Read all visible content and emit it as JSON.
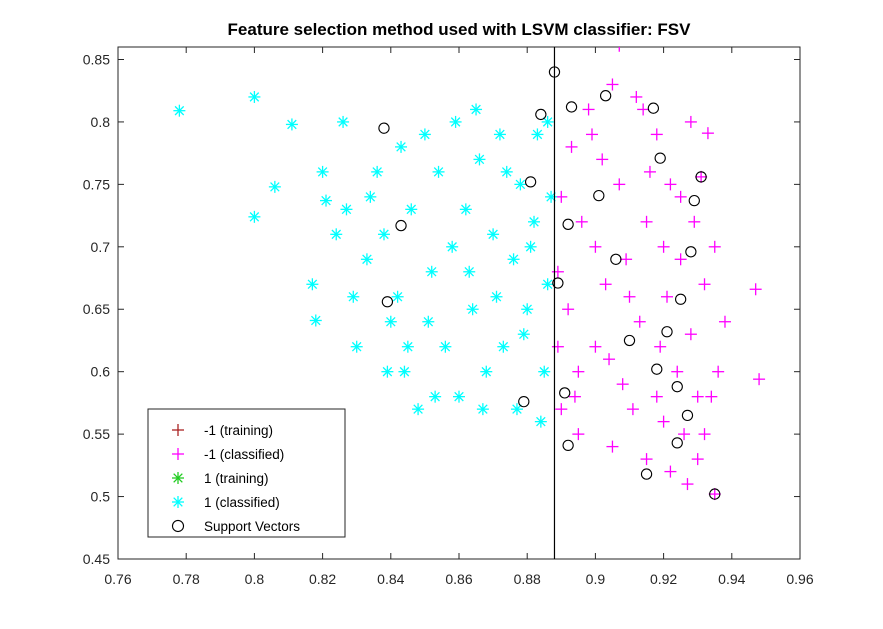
{
  "chart_data": {
    "type": "scatter",
    "title": "Feature selection method used with LSVM classifier: FSV",
    "xlabel": "",
    "ylabel": "",
    "xlim": [
      0.76,
      0.96
    ],
    "ylim": [
      0.45,
      0.86
    ],
    "xticks": [
      "0.76",
      "0.78",
      "0.8",
      "0.82",
      "0.84",
      "0.86",
      "0.88",
      "0.9",
      "0.92",
      "0.94",
      "0.96"
    ],
    "yticks": [
      "0.45",
      "0.5",
      "0.55",
      "0.6",
      "0.65",
      "0.7",
      "0.75",
      "0.8",
      "0.85"
    ],
    "grid": false,
    "legend_position": "bottom-left",
    "decision_boundary_x": 0.888,
    "series": [
      {
        "name": "-1 (training)",
        "marker": "plus",
        "color": "#aa2222",
        "points": []
      },
      {
        "name": "-1 (classified)",
        "marker": "plus",
        "color": "#ff00ff",
        "points": [
          [
            0.907,
            0.861
          ],
          [
            0.947,
            0.666
          ],
          [
            0.948,
            0.594
          ],
          [
            0.933,
            0.791
          ],
          [
            0.931,
            0.756
          ],
          [
            0.935,
            0.502
          ],
          [
            0.93,
            0.58
          ],
          [
            0.928,
            0.63
          ],
          [
            0.925,
            0.69
          ],
          [
            0.922,
            0.75
          ],
          [
            0.918,
            0.79
          ],
          [
            0.912,
            0.82
          ],
          [
            0.905,
            0.83
          ],
          [
            0.898,
            0.81
          ],
          [
            0.893,
            0.78
          ],
          [
            0.89,
            0.74
          ],
          [
            0.889,
            0.68
          ],
          [
            0.889,
            0.62
          ],
          [
            0.89,
            0.57
          ],
          [
            0.895,
            0.55
          ],
          [
            0.905,
            0.54
          ],
          [
            0.915,
            0.53
          ],
          [
            0.922,
            0.52
          ],
          [
            0.927,
            0.51
          ],
          [
            0.932,
            0.55
          ],
          [
            0.936,
            0.6
          ],
          [
            0.938,
            0.64
          ],
          [
            0.935,
            0.7
          ],
          [
            0.929,
            0.72
          ],
          [
            0.92,
            0.7
          ],
          [
            0.91,
            0.66
          ],
          [
            0.9,
            0.62
          ],
          [
            0.895,
            0.6
          ],
          [
            0.9,
            0.7
          ],
          [
            0.907,
            0.75
          ],
          [
            0.915,
            0.72
          ],
          [
            0.924,
            0.6
          ],
          [
            0.918,
            0.58
          ],
          [
            0.908,
            0.59
          ],
          [
            0.903,
            0.67
          ],
          [
            0.913,
            0.64
          ],
          [
            0.921,
            0.66
          ],
          [
            0.926,
            0.55
          ],
          [
            0.92,
            0.56
          ],
          [
            0.911,
            0.57
          ],
          [
            0.932,
            0.67
          ],
          [
            0.928,
            0.8
          ],
          [
            0.902,
            0.77
          ],
          [
            0.896,
            0.72
          ],
          [
            0.892,
            0.65
          ],
          [
            0.894,
            0.58
          ],
          [
            0.916,
            0.76
          ],
          [
            0.919,
            0.62
          ],
          [
            0.925,
            0.74
          ],
          [
            0.93,
            0.53
          ],
          [
            0.934,
            0.58
          ],
          [
            0.909,
            0.69
          ],
          [
            0.899,
            0.79
          ],
          [
            0.904,
            0.61
          ],
          [
            0.914,
            0.81
          ]
        ]
      },
      {
        "name": "1 (training)",
        "marker": "asterisk",
        "color": "#22cc22",
        "points": []
      },
      {
        "name": "1 (classified)",
        "marker": "asterisk",
        "color": "#00ffff",
        "points": [
          [
            0.778,
            0.809
          ],
          [
            0.8,
            0.82
          ],
          [
            0.8,
            0.724
          ],
          [
            0.806,
            0.748
          ],
          [
            0.811,
            0.798
          ],
          [
            0.818,
            0.641
          ],
          [
            0.817,
            0.67
          ],
          [
            0.821,
            0.737
          ],
          [
            0.826,
            0.8
          ],
          [
            0.83,
            0.62
          ],
          [
            0.833,
            0.69
          ],
          [
            0.836,
            0.76
          ],
          [
            0.84,
            0.64
          ],
          [
            0.844,
            0.6
          ],
          [
            0.848,
            0.57
          ],
          [
            0.85,
            0.79
          ],
          [
            0.852,
            0.68
          ],
          [
            0.856,
            0.62
          ],
          [
            0.86,
            0.58
          ],
          [
            0.862,
            0.73
          ],
          [
            0.865,
            0.81
          ],
          [
            0.868,
            0.6
          ],
          [
            0.871,
            0.66
          ],
          [
            0.874,
            0.76
          ],
          [
            0.877,
            0.57
          ],
          [
            0.879,
            0.63
          ],
          [
            0.881,
            0.7
          ],
          [
            0.883,
            0.79
          ],
          [
            0.885,
            0.6
          ],
          [
            0.886,
            0.67
          ],
          [
            0.887,
            0.74
          ],
          [
            0.886,
            0.8
          ],
          [
            0.884,
            0.56
          ],
          [
            0.876,
            0.69
          ],
          [
            0.87,
            0.71
          ],
          [
            0.864,
            0.65
          ],
          [
            0.858,
            0.7
          ],
          [
            0.854,
            0.76
          ],
          [
            0.846,
            0.73
          ],
          [
            0.842,
            0.66
          ],
          [
            0.838,
            0.71
          ],
          [
            0.834,
            0.74
          ],
          [
            0.829,
            0.66
          ],
          [
            0.824,
            0.71
          ],
          [
            0.82,
            0.76
          ],
          [
            0.827,
            0.73
          ],
          [
            0.845,
            0.62
          ],
          [
            0.853,
            0.58
          ],
          [
            0.867,
            0.57
          ],
          [
            0.873,
            0.62
          ],
          [
            0.88,
            0.65
          ],
          [
            0.878,
            0.75
          ],
          [
            0.872,
            0.79
          ],
          [
            0.866,
            0.77
          ],
          [
            0.859,
            0.8
          ],
          [
            0.851,
            0.64
          ],
          [
            0.843,
            0.78
          ],
          [
            0.839,
            0.6
          ],
          [
            0.863,
            0.68
          ],
          [
            0.882,
            0.72
          ]
        ]
      },
      {
        "name": "Support Vectors",
        "marker": "circle",
        "color": "#000000",
        "points": [
          [
            0.888,
            0.84
          ],
          [
            0.893,
            0.812
          ],
          [
            0.903,
            0.821
          ],
          [
            0.917,
            0.811
          ],
          [
            0.931,
            0.756
          ],
          [
            0.935,
            0.502
          ],
          [
            0.929,
            0.737
          ],
          [
            0.928,
            0.696
          ],
          [
            0.925,
            0.658
          ],
          [
            0.924,
            0.588
          ],
          [
            0.927,
            0.565
          ],
          [
            0.924,
            0.543
          ],
          [
            0.915,
            0.518
          ],
          [
            0.892,
            0.541
          ],
          [
            0.891,
            0.583
          ],
          [
            0.889,
            0.671
          ],
          [
            0.892,
            0.718
          ],
          [
            0.901,
            0.741
          ],
          [
            0.906,
            0.69
          ],
          [
            0.91,
            0.625
          ],
          [
            0.918,
            0.602
          ],
          [
            0.921,
            0.632
          ],
          [
            0.919,
            0.771
          ],
          [
            0.838,
            0.795
          ],
          [
            0.839,
            0.656
          ],
          [
            0.843,
            0.717
          ],
          [
            0.879,
            0.576
          ],
          [
            0.881,
            0.752
          ],
          [
            0.884,
            0.806
          ]
        ]
      }
    ]
  }
}
